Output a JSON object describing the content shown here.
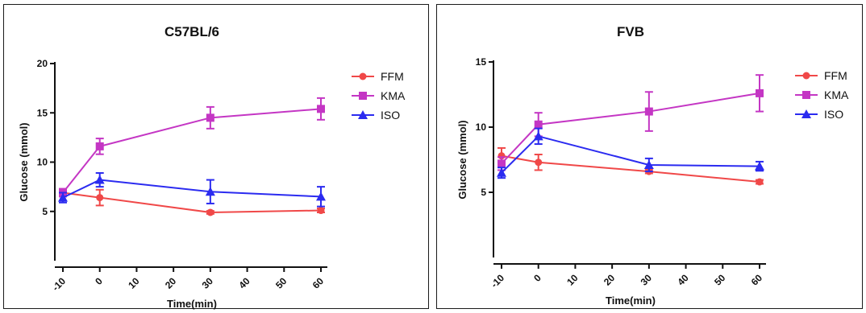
{
  "chart_data": [
    {
      "type": "line",
      "title": "C57BL/6",
      "xlabel": "Time(min)",
      "ylabel": "Glucose (mmol)",
      "xlim": [
        -10,
        60
      ],
      "ylim": [
        0,
        20
      ],
      "xticks": [
        -10,
        0,
        10,
        20,
        30,
        40,
        50,
        60
      ],
      "yticks": [
        5,
        10,
        15,
        20
      ],
      "legend_position": "right",
      "series": [
        {
          "name": "FFM",
          "color": "#f04848",
          "marker": "circle",
          "x": [
            -10,
            0,
            30,
            60
          ],
          "y": [
            6.9,
            6.4,
            4.9,
            5.1
          ],
          "error": [
            0.2,
            0.8,
            0.15,
            0.2
          ]
        },
        {
          "name": "KMA",
          "color": "#c436c4",
          "marker": "square",
          "x": [
            -10,
            0,
            30,
            60
          ],
          "y": [
            6.9,
            11.6,
            14.5,
            15.4
          ],
          "error": [
            0.4,
            0.8,
            1.1,
            1.1
          ]
        },
        {
          "name": "ISO",
          "color": "#2b2bf0",
          "marker": "triangle",
          "x": [
            -10,
            0,
            30,
            60
          ],
          "y": [
            6.4,
            8.2,
            7.0,
            6.5
          ],
          "error": [
            0.5,
            0.7,
            1.2,
            1.0
          ]
        }
      ]
    },
    {
      "type": "line",
      "title": "FVB",
      "xlabel": "Time(min)",
      "ylabel": "Glucose (mmol)",
      "xlim": [
        -10,
        60
      ],
      "ylim": [
        0,
        15
      ],
      "xticks": [
        -10,
        0,
        10,
        20,
        30,
        40,
        50,
        60
      ],
      "yticks": [
        5,
        10,
        15
      ],
      "legend_position": "right",
      "series": [
        {
          "name": "FFM",
          "color": "#f04848",
          "marker": "circle",
          "x": [
            -10,
            0,
            30,
            60
          ],
          "y": [
            7.8,
            7.3,
            6.6,
            5.8
          ],
          "error": [
            0.6,
            0.6,
            0.15,
            0.15
          ]
        },
        {
          "name": "KMA",
          "color": "#c436c4",
          "marker": "square",
          "x": [
            -10,
            0,
            30,
            60
          ],
          "y": [
            7.2,
            10.2,
            11.2,
            12.6
          ],
          "error": [
            0.5,
            0.9,
            1.5,
            1.4
          ]
        },
        {
          "name": "ISO",
          "color": "#2b2bf0",
          "marker": "triangle",
          "x": [
            -10,
            0,
            30,
            60
          ],
          "y": [
            6.5,
            9.3,
            7.1,
            7.0
          ],
          "error": [
            0.4,
            0.6,
            0.5,
            0.35
          ]
        }
      ]
    }
  ]
}
